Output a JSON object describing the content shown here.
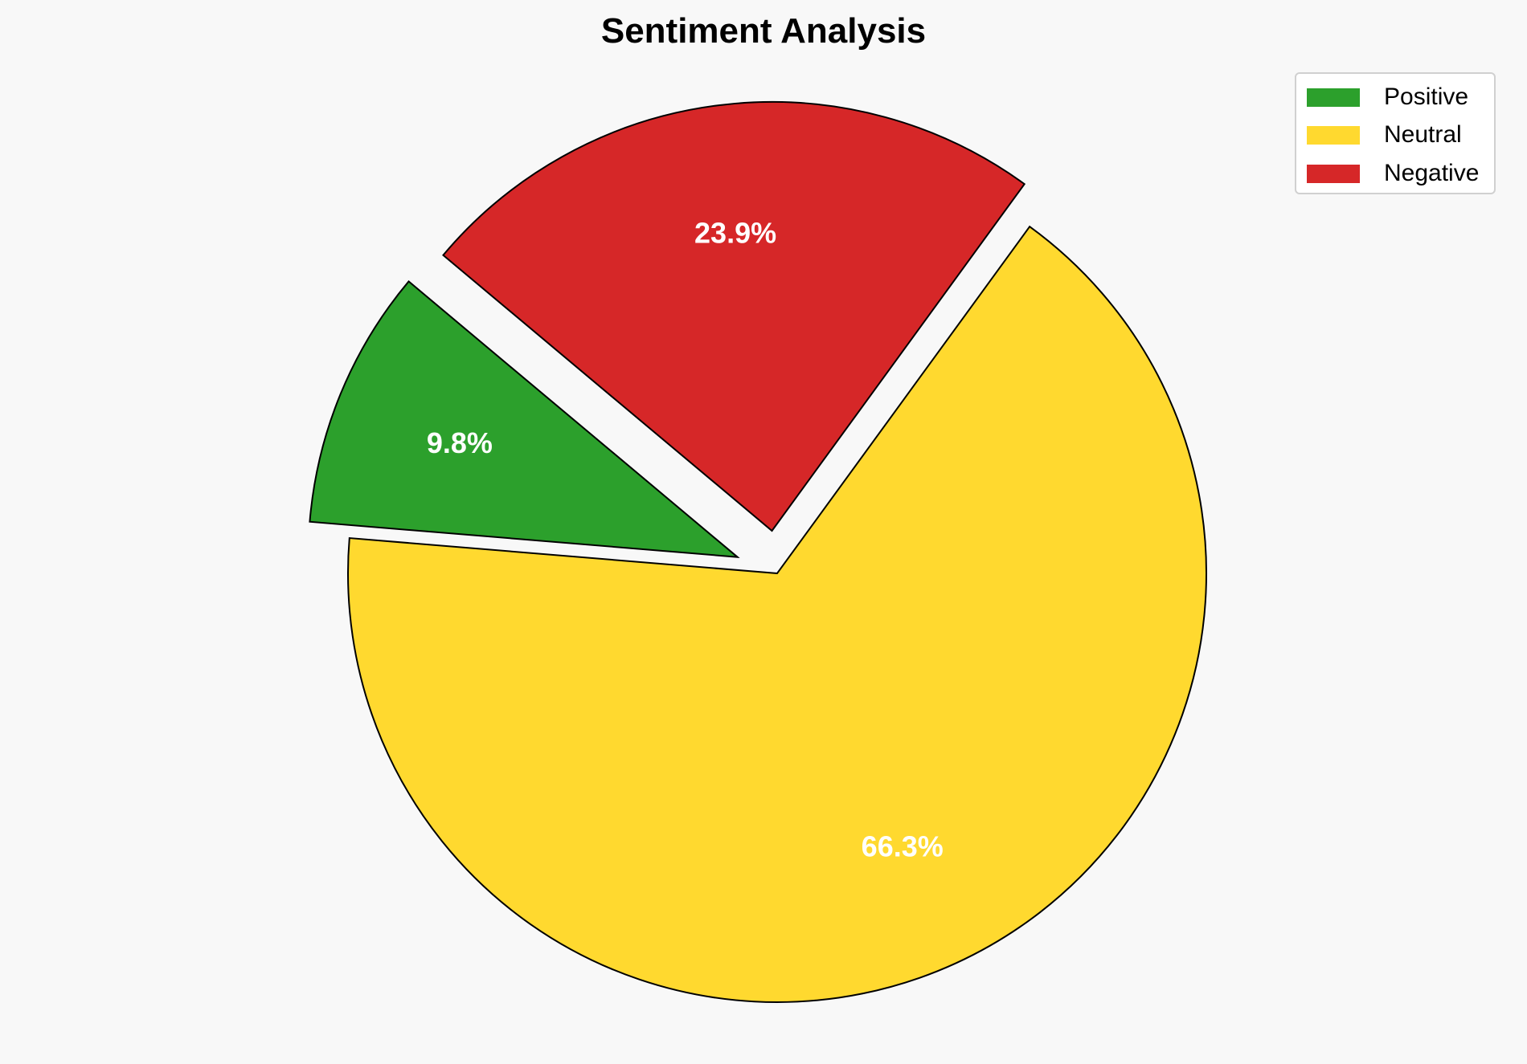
{
  "chart_data": {
    "type": "pie",
    "title": "Sentiment Analysis",
    "categories": [
      "Positive",
      "Neutral",
      "Negative"
    ],
    "values": [
      9.8,
      66.3,
      23.9
    ],
    "labels": [
      "9.8%",
      "66.3%",
      "23.9%"
    ],
    "colors": [
      "#2ca02c",
      "#ffd92f",
      "#d62728"
    ],
    "explode": [
      0.1,
      0,
      0.1
    ],
    "start_angle": 140,
    "direction": "counterclockwise",
    "legend_placement": "top-right"
  }
}
